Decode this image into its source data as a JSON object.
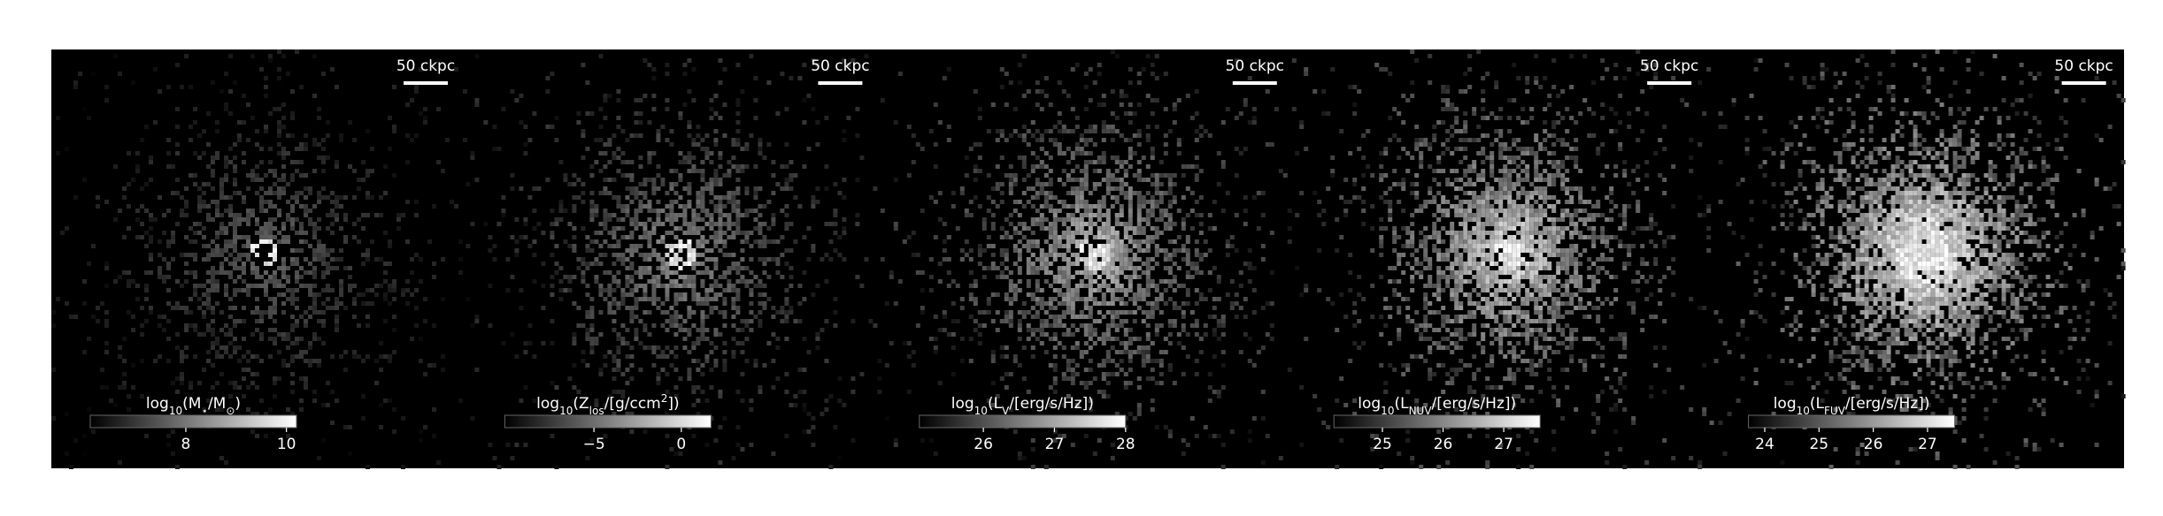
{
  "panels": [
    {
      "scale_bar": "50 ckpc",
      "colorbar": {
        "label": [
          {
            "text": "log"
          },
          {
            "text": "10",
            "sub": true
          },
          {
            "text": "(M"
          },
          {
            "text": "⋆",
            "sub": true
          },
          {
            "text": "/M"
          },
          {
            "text": "⊙",
            "sub": true
          },
          {
            "text": ")"
          }
        ],
        "lim": [
          6.1,
          10.2
        ],
        "ticks": [
          8,
          10
        ]
      }
    },
    {
      "scale_bar": "50 ckpc",
      "colorbar": {
        "label": [
          {
            "text": "log"
          },
          {
            "text": "10",
            "sub": true
          },
          {
            "text": "(Z"
          },
          {
            "text": "los",
            "sub": true
          },
          {
            "text": "/[g/ccm"
          },
          {
            "text": "2",
            "sup": true
          },
          {
            "text": "])"
          }
        ],
        "lim": [
          -10.1,
          1.7
        ],
        "ticks": [
          {
            "value": -5,
            "label": "−5"
          },
          0
        ]
      }
    },
    {
      "scale_bar": "50 ckpc",
      "colorbar": {
        "label": [
          {
            "text": "log"
          },
          {
            "text": "10",
            "sub": true
          },
          {
            "text": "(L"
          },
          {
            "text": "V",
            "sub": true
          },
          {
            "text": "/[erg/s/Hz])"
          }
        ],
        "lim": [
          25.1,
          28.0
        ],
        "ticks": [
          26,
          27,
          28
        ]
      }
    },
    {
      "scale_bar": "50 ckpc",
      "colorbar": {
        "label": [
          {
            "text": "log"
          },
          {
            "text": "10",
            "sub": true
          },
          {
            "text": "(L"
          },
          {
            "text": "NUV",
            "sub": true
          },
          {
            "text": "/[erg/s/Hz])"
          }
        ],
        "lim": [
          24.2,
          27.6
        ],
        "ticks": [
          25,
          26,
          27
        ]
      }
    },
    {
      "scale_bar": "50 ckpc",
      "colorbar": {
        "label": [
          {
            "text": "log"
          },
          {
            "text": "10",
            "sub": true
          },
          {
            "text": "(L"
          },
          {
            "text": "FUV",
            "sub": true
          },
          {
            "text": "/[erg/s/Hz])"
          }
        ],
        "lim": [
          23.7,
          27.5
        ],
        "ticks": [
          24,
          25,
          26,
          27
        ]
      }
    }
  ]
}
